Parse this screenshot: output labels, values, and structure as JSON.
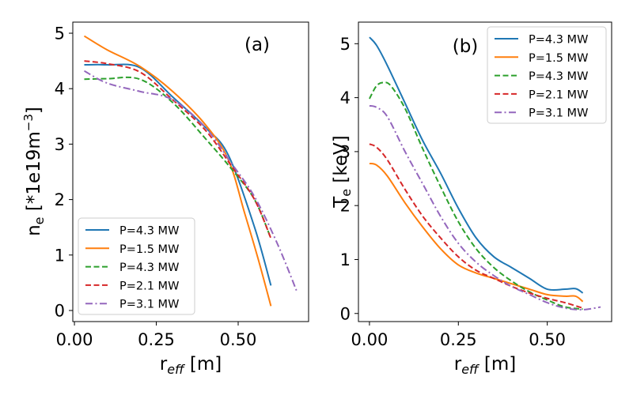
{
  "chart_data": [
    {
      "type": "line",
      "panel_label": "(a)",
      "xlabel": {
        "main": "r",
        "sub": "eff",
        "unit": " [m]"
      },
      "ylabel": {
        "main": "n",
        "sub": "e",
        "unit": " [*1e19m",
        "sup": "−3",
        "close": "]"
      },
      "xlim": [
        -0.005,
        0.715
      ],
      "ylim": [
        -0.2,
        5.2
      ],
      "xticks": [
        0.0,
        0.25,
        0.5
      ],
      "xtick_labels": [
        "0.00",
        "0.25",
        "0.50"
      ],
      "yticks": [
        0,
        1,
        2,
        3,
        4,
        5
      ],
      "ytick_labels": [
        "0",
        "1",
        "2",
        "3",
        "4",
        "5"
      ],
      "legend_position": "lower-left",
      "series": [
        {
          "name": "P=4.3 MW",
          "color": "#1f77b4",
          "style": "solid",
          "x": [
            0.03,
            0.1,
            0.2,
            0.3,
            0.4,
            0.47,
            0.55,
            0.6
          ],
          "y": [
            4.43,
            4.43,
            4.38,
            3.85,
            3.3,
            2.8,
            1.5,
            0.45
          ]
        },
        {
          "name": "P=1.5 MW",
          "color": "#ff7f0e",
          "style": "solid",
          "x": [
            0.03,
            0.1,
            0.2,
            0.3,
            0.4,
            0.47,
            0.52,
            0.56,
            0.6
          ],
          "y": [
            4.95,
            4.7,
            4.4,
            3.95,
            3.35,
            2.72,
            1.75,
            0.95,
            0.08
          ]
        },
        {
          "name": "P=4.3 MW",
          "color": "#2ca02c",
          "style": "dashed",
          "x": [
            0.03,
            0.1,
            0.2,
            0.3,
            0.4,
            0.48,
            0.55,
            0.6
          ],
          "y": [
            4.17,
            4.18,
            4.17,
            3.75,
            3.1,
            2.55,
            2.0,
            1.3
          ]
        },
        {
          "name": "P=2.1 MW",
          "color": "#d62728",
          "style": "dashed",
          "x": [
            0.03,
            0.1,
            0.2,
            0.3,
            0.4,
            0.48,
            0.55,
            0.6
          ],
          "y": [
            4.5,
            4.45,
            4.3,
            3.8,
            3.25,
            2.6,
            2.0,
            1.3
          ]
        },
        {
          "name": "P=3.1 MW",
          "color": "#9467bd",
          "style": "dashdot",
          "x": [
            0.03,
            0.1,
            0.2,
            0.3,
            0.4,
            0.48,
            0.55,
            0.62,
            0.68
          ],
          "y": [
            4.32,
            4.1,
            3.95,
            3.8,
            3.3,
            2.65,
            2.05,
            1.2,
            0.33
          ]
        }
      ]
    },
    {
      "type": "line",
      "panel_label": "(b)",
      "xlabel": {
        "main": "r",
        "sub": "eff",
        "unit": " [m]"
      },
      "ylabel": {
        "main": "T",
        "sub": "e",
        "unit": " [keV]"
      },
      "xlim": [
        -0.031,
        0.681
      ],
      "ylim": [
        -0.15,
        5.4
      ],
      "xticks": [
        0.0,
        0.25,
        0.5
      ],
      "xtick_labels": [
        "0.00",
        "0.25",
        "0.50"
      ],
      "yticks": [
        0,
        1,
        2,
        3,
        4,
        5
      ],
      "ytick_labels": [
        "0",
        "1",
        "2",
        "3",
        "4",
        "5"
      ],
      "legend_position": "top-right",
      "series": [
        {
          "name": "P=4.3 MW",
          "color": "#1f77b4",
          "style": "solid",
          "x": [
            0.0,
            0.02,
            0.05,
            0.1,
            0.15,
            0.2,
            0.25,
            0.3,
            0.35,
            0.4,
            0.45,
            0.5,
            0.55,
            0.58,
            0.6
          ],
          "y": [
            5.12,
            4.97,
            4.6,
            3.9,
            3.2,
            2.6,
            1.95,
            1.4,
            1.05,
            0.85,
            0.65,
            0.45,
            0.45,
            0.46,
            0.38
          ]
        },
        {
          "name": "P=1.5 MW",
          "color": "#ff7f0e",
          "style": "solid",
          "x": [
            0.0,
            0.02,
            0.05,
            0.1,
            0.15,
            0.2,
            0.25,
            0.3,
            0.35,
            0.4,
            0.45,
            0.5,
            0.55,
            0.58,
            0.6
          ],
          "y": [
            2.78,
            2.75,
            2.55,
            2.05,
            1.6,
            1.2,
            0.9,
            0.75,
            0.65,
            0.55,
            0.45,
            0.35,
            0.32,
            0.32,
            0.22
          ]
        },
        {
          "name": "P=4.3 MW",
          "color": "#2ca02c",
          "style": "dashed",
          "x": [
            0.0,
            0.02,
            0.04,
            0.06,
            0.1,
            0.15,
            0.2,
            0.25,
            0.3,
            0.35,
            0.4,
            0.45,
            0.5,
            0.55,
            0.6
          ],
          "y": [
            3.98,
            4.22,
            4.28,
            4.22,
            3.8,
            3.05,
            2.35,
            1.7,
            1.2,
            0.85,
            0.6,
            0.4,
            0.25,
            0.12,
            0.08
          ]
        },
        {
          "name": "P=2.1 MW",
          "color": "#d62728",
          "style": "dashed",
          "x": [
            0.0,
            0.02,
            0.05,
            0.1,
            0.15,
            0.2,
            0.25,
            0.3,
            0.35,
            0.4,
            0.45,
            0.5,
            0.55,
            0.6
          ],
          "y": [
            3.14,
            3.08,
            2.85,
            2.3,
            1.8,
            1.4,
            1.05,
            0.8,
            0.65,
            0.5,
            0.38,
            0.28,
            0.2,
            0.1
          ]
        },
        {
          "name": "P=3.1 MW",
          "color": "#9467bd",
          "style": "dashdot",
          "x": [
            0.0,
            0.02,
            0.05,
            0.1,
            0.15,
            0.2,
            0.25,
            0.3,
            0.35,
            0.4,
            0.45,
            0.5,
            0.55,
            0.6,
            0.65
          ],
          "y": [
            3.85,
            3.82,
            3.65,
            3.0,
            2.4,
            1.8,
            1.3,
            0.95,
            0.7,
            0.5,
            0.35,
            0.2,
            0.1,
            0.07,
            0.12
          ]
        }
      ]
    }
  ]
}
